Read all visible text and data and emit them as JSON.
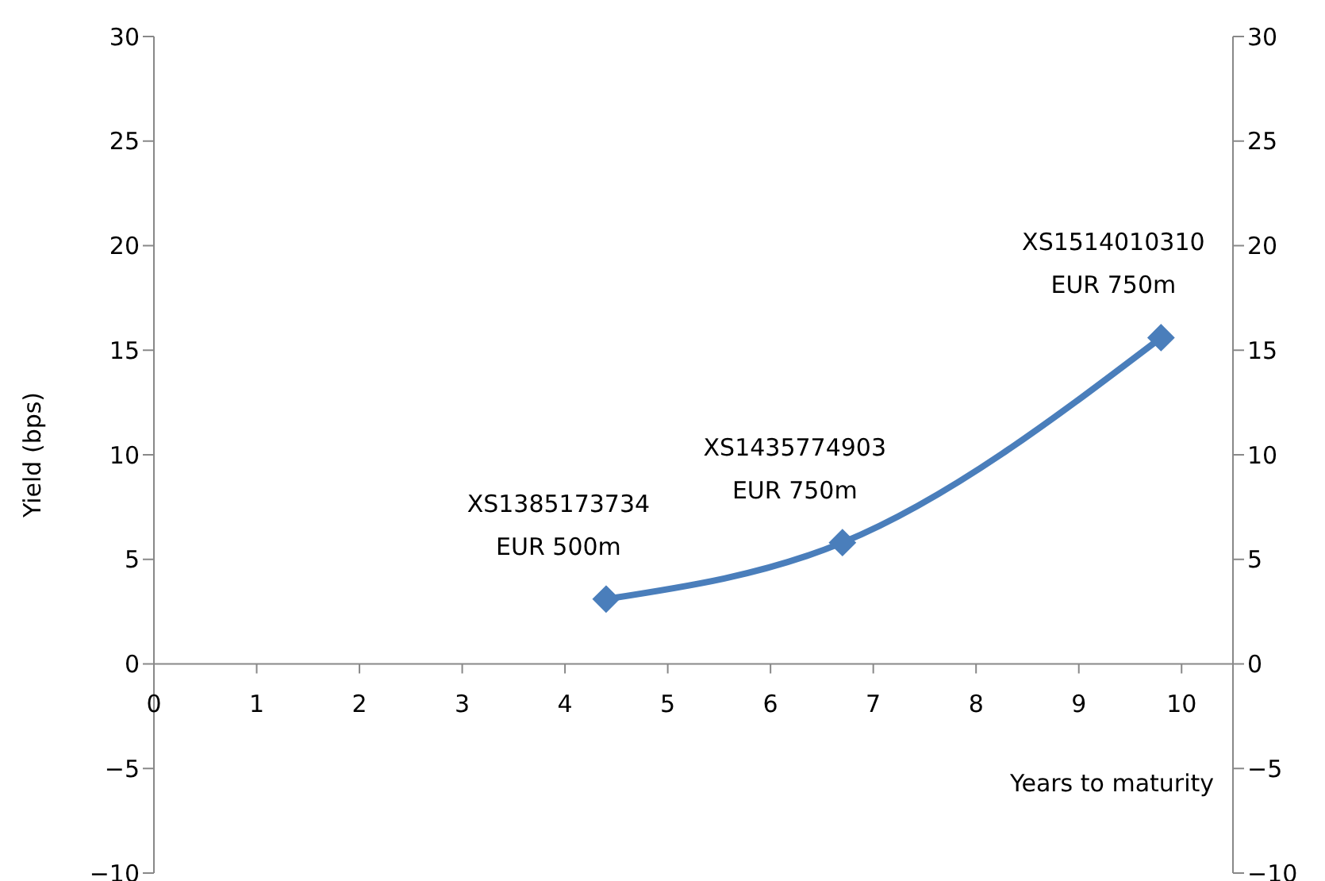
{
  "chart_data": {
    "type": "line",
    "ylabel": "Yield (bps)",
    "xlabel": "Years to maturity",
    "series": [
      {
        "color": "#4a7ebb",
        "x": [
          4.4,
          6.7,
          9.8
        ],
        "values": [
          3.1,
          5.8,
          15.6
        ]
      }
    ],
    "xlim": [
      0,
      10.5
    ],
    "xticks": [
      0,
      1,
      2,
      3,
      4,
      5,
      6,
      7,
      8,
      9,
      10
    ],
    "ylim": [
      -10,
      30
    ],
    "yticks": [
      {
        "value": -10,
        "label": "−10"
      },
      {
        "value": -5,
        "label": "−5"
      },
      0,
      5,
      10,
      15,
      20,
      25,
      30
    ],
    "y2lim": [
      -10,
      30
    ],
    "y2ticks": [
      {
        "value": -10,
        "label": "−10"
      },
      {
        "value": -5,
        "label": "−5"
      },
      0,
      5,
      10,
      15,
      20,
      25,
      30
    ],
    "annotations": [
      {
        "text": "XS1385173734\nEUR 500m",
        "x": 4.4,
        "y": 3.1
      },
      {
        "text": "XS1435774903\nEUR 750m",
        "x": 6.7,
        "y": 5.8
      },
      {
        "text": "XS1514010310\nEUR 750m",
        "x": 9.8,
        "y": 15.6
      }
    ],
    "marker": "diamond",
    "line_style": "solid"
  }
}
